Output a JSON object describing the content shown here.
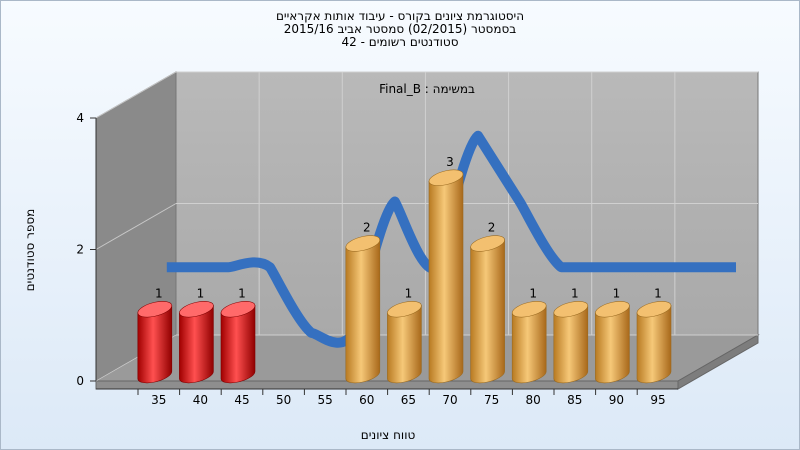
{
  "titles": {
    "line1": "היסטוגרמת ציונים בקורס - עיבוד אותות אקראיים",
    "line2": "בסמסטר  (02/2015)  סמסטר אביב 2015/16",
    "line3": "סטודנטים רשומים - 42"
  },
  "chart_data": {
    "type": "bar",
    "title": "היסטוגרמת ציונים בקורס - עיבוד אותות אקראיים",
    "subtitle": "בסמסטר  (02/2015)  סמסטר אביב 2015/16 / סטודנטים רשומים - 42",
    "panel_label": "במשימה : Final_B",
    "xlabel": "טווח ציונים",
    "ylabel": "מספר סטודנטים",
    "categories": [
      "35",
      "40",
      "45",
      "50",
      "55",
      "60",
      "65",
      "70",
      "75",
      "80",
      "85",
      "90",
      "95"
    ],
    "values": [
      1,
      1,
      1,
      0,
      0,
      2,
      1,
      3,
      2,
      1,
      1,
      1,
      1
    ],
    "bar_colors": [
      "#dd1111",
      "#dd1111",
      "#dd1111",
      "#e8a84a",
      "#e8a84a",
      "#e8a84a",
      "#e8a84a",
      "#e8a84a",
      "#e8a84a",
      "#e8a84a",
      "#e8a84a",
      "#e8a84a",
      "#e8a84a"
    ],
    "curve_color": "#3570c0",
    "yticks": [
      0,
      2,
      4
    ],
    "ylim": [
      0,
      4
    ]
  }
}
